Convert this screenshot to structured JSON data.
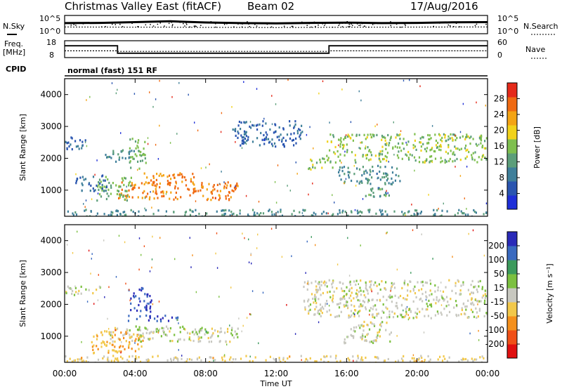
{
  "header": {
    "station": "Christmas Valley East (fitACF)",
    "beam": "Beam 02",
    "date": "17/Aug/2016"
  },
  "aux_panels": {
    "nsky_label": "N.Sky",
    "nsearch_label": "N.Search",
    "nsky_ticks": [
      "10^5",
      "10^0"
    ],
    "freq_label": "Freq.",
    "freq_unit": "[MHz]",
    "freq_ticks": [
      "18",
      "8"
    ],
    "nave_label": "Nave",
    "nave_ticks": [
      "60",
      "0"
    ],
    "cpid_label": "CPID",
    "cpid_value": "normal (fast) 151 RF"
  },
  "colors": {
    "power": [
      "#1f2fd8",
      "#2a55b0",
      "#3f7f9a",
      "#5c9e7a",
      "#7fbf4f",
      "#f2d21a",
      "#f4a414",
      "#f06a12",
      "#e52a1a"
    ],
    "velocity": [
      "#e01010",
      "#f05018",
      "#f5901c",
      "#f2c84a",
      "#c8c8c0",
      "#7cc040",
      "#3c9a5c",
      "#3a6ac0",
      "#2a2ab8"
    ]
  },
  "chart_data": [
    {
      "type": "line",
      "title": "N.Sky / N.Search",
      "x": [
        0,
        2,
        4,
        6,
        8,
        10,
        12,
        14,
        16,
        18,
        20,
        22,
        24
      ],
      "series": [
        {
          "name": "N.Sky",
          "values": [
            800,
            900,
            1500,
            2500,
            1200,
            800,
            700,
            900,
            1100,
            800,
            900,
            1300,
            1500
          ]
        },
        {
          "name": "N.Search",
          "values": [
            70,
            65,
            60,
            60,
            55,
            55,
            50,
            55,
            60,
            60,
            65,
            70,
            70
          ]
        }
      ],
      "ylim": [
        1,
        100000
      ],
      "yscale": "log"
    },
    {
      "type": "line",
      "title": "Freq / Nave",
      "x": [
        0,
        3.0,
        3.0,
        15.0,
        15.0,
        24
      ],
      "series": [
        {
          "name": "Freq.",
          "values": [
            15.0,
            15.0,
            10.6,
            10.6,
            15.0,
            15.0
          ]
        },
        {
          "name": "Nave",
          "values": [
            24,
            24,
            22,
            22,
            24,
            24
          ]
        }
      ],
      "ylim": [
        8,
        18
      ]
    },
    {
      "type": "heatmap",
      "title": "Power",
      "x": [
        "00:00",
        "04:00",
        "08:00",
        "12:00",
        "16:00",
        "20:00",
        "00:00"
      ],
      "xlabel": "",
      "ylabel": "Slant Range [km]",
      "ylim": [
        180,
        4500
      ],
      "yticks": [
        "1000",
        "2000",
        "3000",
        "4000"
      ],
      "colorbar_label": "Power [dB]",
      "colorbar_ticks": [
        "28",
        "24",
        "20",
        "16",
        "12",
        "8",
        "4"
      ],
      "clim": [
        0,
        30
      ],
      "regions": [
        {
          "t0": 3.0,
          "t1": 9.8,
          "r0": 720,
          "r1": 1300,
          "v": 24
        },
        {
          "t0": 4.3,
          "t1": 7.5,
          "r0": 1250,
          "r1": 1600,
          "v": 24
        },
        {
          "t0": 1.8,
          "t1": 3.8,
          "r0": 700,
          "r1": 1450,
          "v": 14
        },
        {
          "t0": 3.6,
          "t1": 4.6,
          "r0": 1700,
          "r1": 2700,
          "v": 14
        },
        {
          "t0": 2.2,
          "t1": 4.0,
          "r0": 1900,
          "r1": 2300,
          "v": 9
        },
        {
          "t0": 0.0,
          "t1": 1.2,
          "r0": 2300,
          "r1": 2700,
          "v": 6
        },
        {
          "t0": 0.6,
          "t1": 2.4,
          "r0": 1000,
          "r1": 1500,
          "v": 7
        },
        {
          "t0": 0.0,
          "t1": 24.0,
          "r0": 180,
          "r1": 420,
          "v": 10
        },
        {
          "t0": 13.8,
          "t1": 15.2,
          "r0": 1650,
          "r1": 2050,
          "v": 15
        },
        {
          "t0": 14.8,
          "t1": 24.0,
          "r0": 1900,
          "r1": 2800,
          "v": 15
        },
        {
          "t0": 15.5,
          "t1": 19.0,
          "r0": 1200,
          "r1": 1800,
          "v": 10
        },
        {
          "t0": 17.0,
          "t1": 18.5,
          "r0": 800,
          "r1": 1100,
          "v": 11
        },
        {
          "t0": 9.5,
          "t1": 13.5,
          "r0": 2400,
          "r1": 3200,
          "v": 6
        }
      ]
    },
    {
      "type": "heatmap",
      "title": "Velocity",
      "x": [
        "00:00",
        "04:00",
        "08:00",
        "12:00",
        "16:00",
        "20:00",
        "00:00"
      ],
      "xlabel": "Time UT",
      "ylabel": "Slant Range [km]",
      "ylim": [
        180,
        4500
      ],
      "yticks": [
        "1000",
        "2000",
        "3000",
        "4000"
      ],
      "colorbar_label": "Velocity [m s⁻¹]",
      "colorbar_ticks": [
        "200",
        "100",
        "50",
        "15",
        "-15",
        "-50",
        "-100",
        "-200"
      ],
      "clim": [
        -250,
        250
      ],
      "regions": [
        {
          "t0": 2.5,
          "t1": 9.8,
          "r0": 850,
          "r1": 1300,
          "v": 0
        },
        {
          "t0": 1.5,
          "t1": 4.5,
          "r0": 500,
          "r1": 1200,
          "v": -70
        },
        {
          "t0": 3.5,
          "t1": 6.5,
          "r0": 1500,
          "r1": 1700,
          "v": 180
        },
        {
          "t0": 3.6,
          "t1": 4.9,
          "r0": 1800,
          "r1": 2600,
          "v": 200
        },
        {
          "t0": 4.0,
          "t1": 8.0,
          "r0": 1150,
          "r1": 1350,
          "v": 40
        },
        {
          "t0": 0.0,
          "t1": 2.0,
          "r0": 2300,
          "r1": 2600,
          "v": 0
        },
        {
          "t0": 0.0,
          "t1": 24.0,
          "r0": 180,
          "r1": 420,
          "v": -40
        },
        {
          "t0": 13.5,
          "t1": 24.0,
          "r0": 1600,
          "r1": 2800,
          "v": 0
        },
        {
          "t0": 15.8,
          "t1": 18.5,
          "r0": 800,
          "r1": 1500,
          "v": 0
        }
      ]
    }
  ]
}
